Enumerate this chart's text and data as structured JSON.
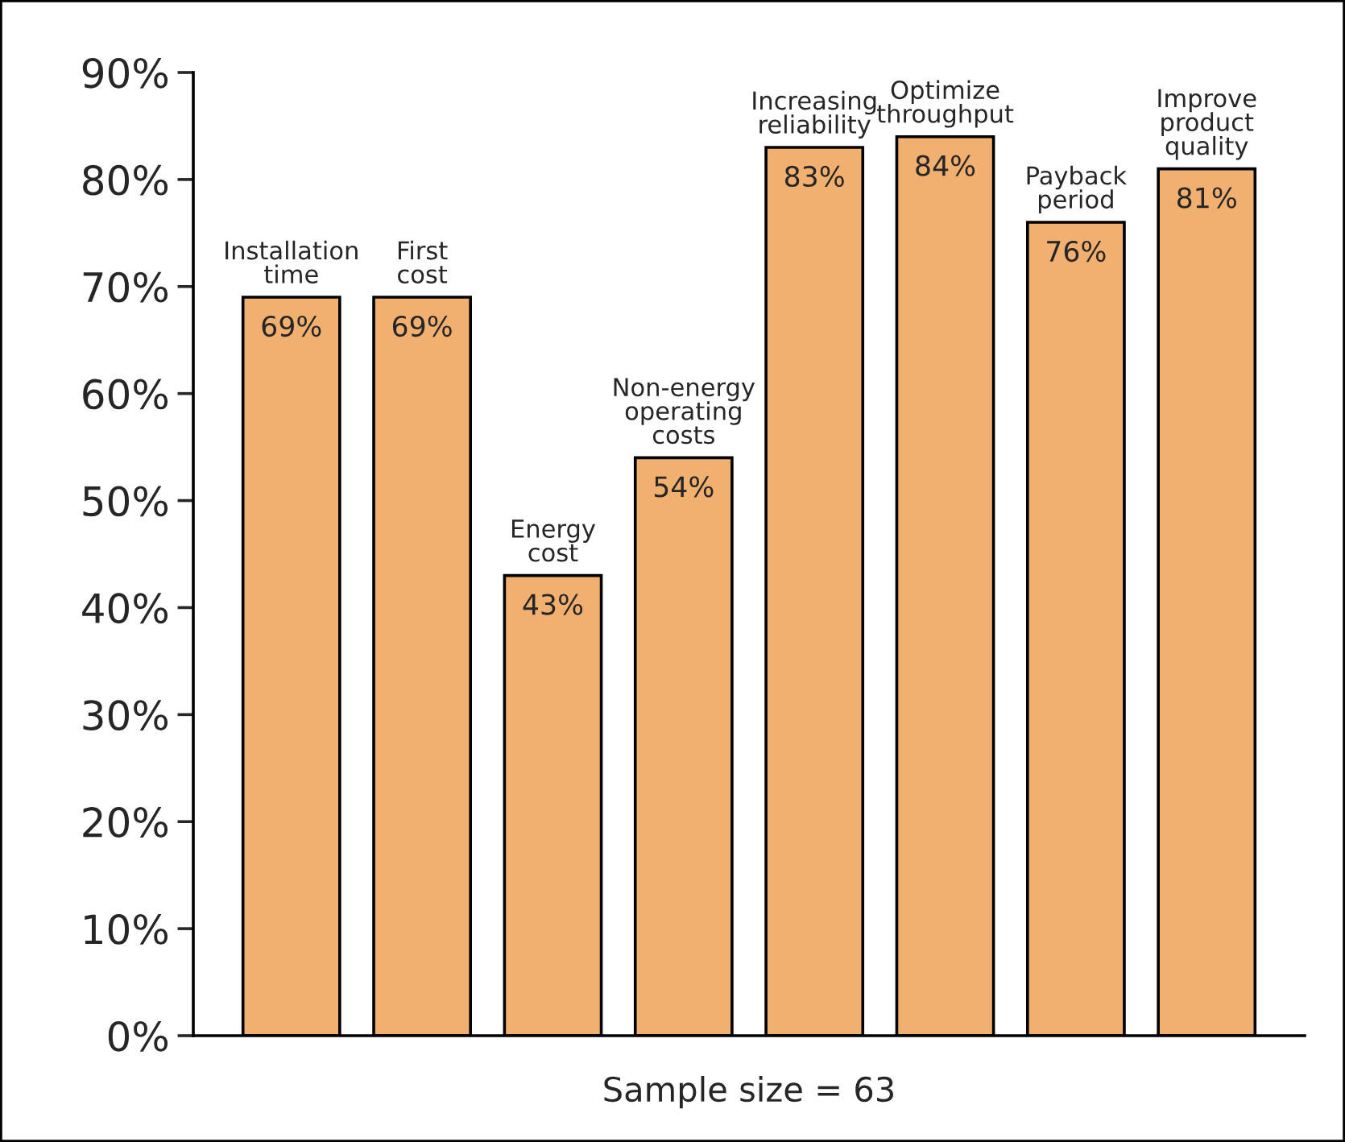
{
  "chart_data": {
    "type": "bar",
    "xlabel": "Sample size = 63",
    "categories": [
      "Installation\ntime",
      "First\ncost",
      "Energy\ncost",
      "Non-energy\noperating\ncosts",
      "Increasing\nreliability",
      "Optimize\nthroughput",
      "Payback\nperiod",
      "Improve\nproduct\nquality"
    ],
    "values": [
      69,
      69,
      43,
      54,
      83,
      84,
      76,
      81
    ],
    "value_labels": [
      "69%",
      "69%",
      "43%",
      "54%",
      "83%",
      "84%",
      "76%",
      "81%"
    ],
    "color": "#f2b070",
    "ylim": [
      0,
      90
    ],
    "yticks": [
      {
        "value": 0,
        "label": "0%"
      },
      {
        "value": 10,
        "label": "10%"
      },
      {
        "value": 20,
        "label": "20%"
      },
      {
        "value": 30,
        "label": "30%"
      },
      {
        "value": 40,
        "label": "40%"
      },
      {
        "value": 50,
        "label": "50%"
      },
      {
        "value": 60,
        "label": "60%"
      },
      {
        "value": 70,
        "label": "70%"
      },
      {
        "value": 80,
        "label": "80%"
      },
      {
        "value": 90,
        "label": "90%"
      }
    ],
    "grid": false,
    "legend": false
  }
}
